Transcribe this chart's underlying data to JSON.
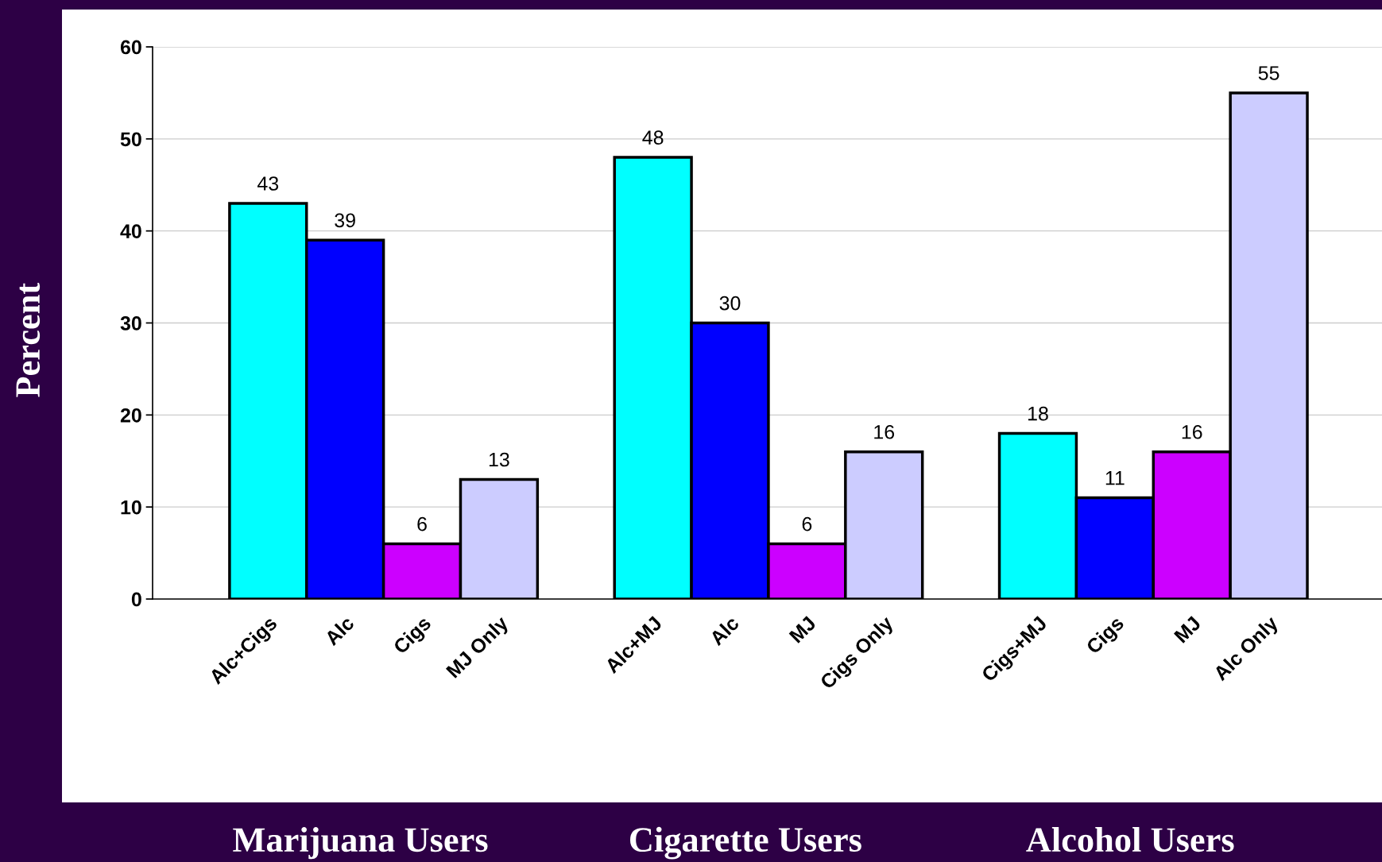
{
  "chart_data": {
    "type": "bar",
    "ylabel": "Percent",
    "categories": [
      "Alc+Cigs",
      "Alc",
      "Cigs",
      "MJ Only",
      null,
      "Alc+MJ",
      "Alc",
      "MJ",
      "Cigs Only",
      null,
      "Cigs+MJ",
      "Cigs",
      "MJ",
      "Alc Only"
    ],
    "values": [
      43,
      39,
      6,
      13,
      null,
      48,
      30,
      6,
      16,
      null,
      18,
      11,
      16,
      55
    ],
    "colors": [
      "#00ffff",
      "#0000ff",
      "#cc00ff",
      "#ccccff",
      null,
      "#00ffff",
      "#0000ff",
      "#cc00ff",
      "#ccccff",
      null,
      "#00ffff",
      "#0000ff",
      "#cc00ff",
      "#ccccff"
    ],
    "ylim": [
      0,
      60
    ],
    "yticks": [
      0,
      10,
      20,
      30,
      40,
      50,
      60
    ],
    "grid": "y",
    "data_labels": true,
    "annotations": [
      "Marijuana Users",
      "Cigarette Users",
      "Alcohol Users"
    ]
  }
}
